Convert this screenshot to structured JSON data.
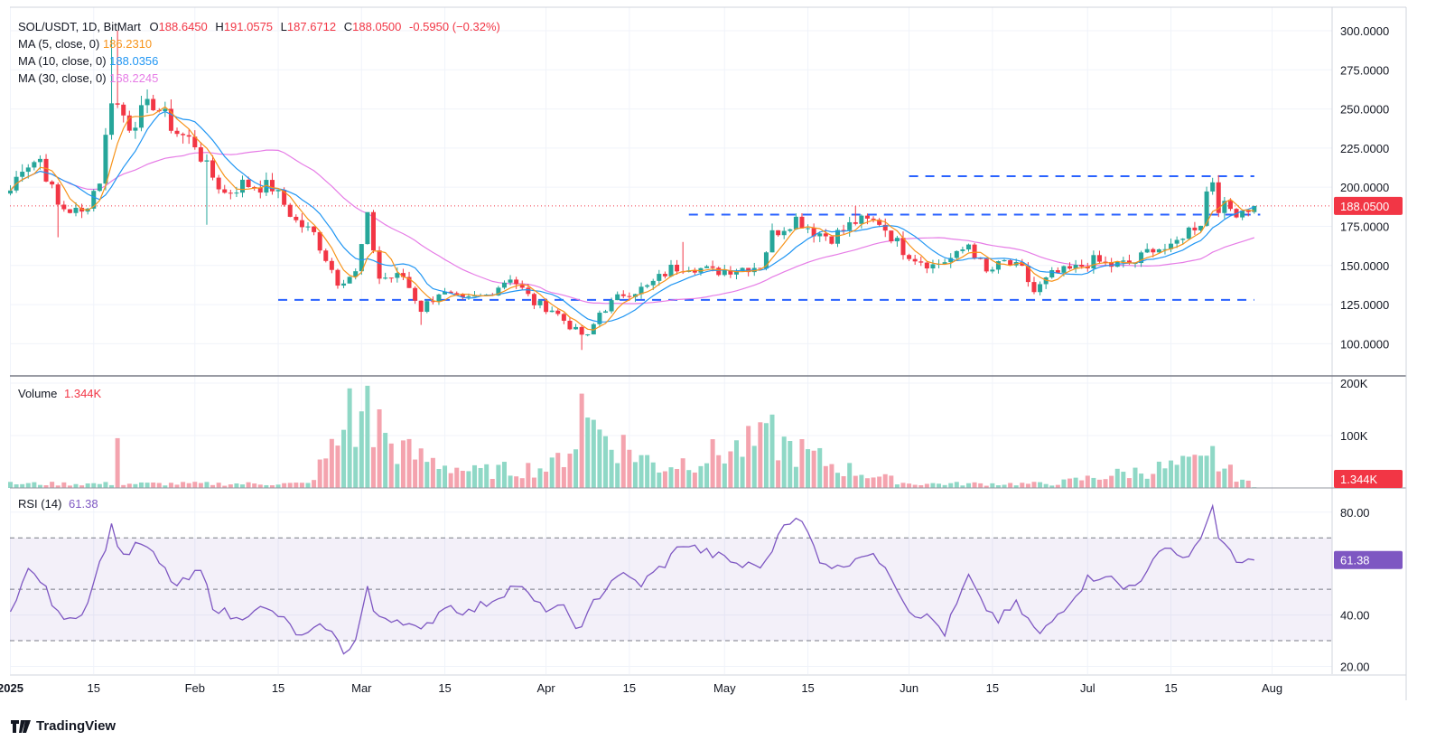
{
  "header": {
    "symbol": "SOL/USDT, 1D, BitMart",
    "o_label": "O",
    "o": "188.6450",
    "h_label": "H",
    "h": "191.0575",
    "l_label": "L",
    "l": "187.6712",
    "c_label": "C",
    "c": "188.0500",
    "change": "-0.5950 (−0.32%)"
  },
  "ma_legend": [
    {
      "label": "MA (5, close, 0)",
      "value": "186.2310",
      "color": "#f7931a"
    },
    {
      "label": "MA (10, close, 0)",
      "value": "188.0356",
      "color": "#2196f3"
    },
    {
      "label": "MA (30, close, 0)",
      "value": "168.2245",
      "color": "#e67ce6"
    }
  ],
  "volume_legend": {
    "label": "Volume",
    "value": "1.344K"
  },
  "rsi_legend": {
    "label": "RSI (14)",
    "value": "61.38"
  },
  "branding": "TradingView",
  "colors": {
    "up": "#26a69a",
    "down": "#f23645",
    "up_vol": "#8fd8c6",
    "down_vol": "#f4a3ae",
    "ma5": "#f7931a",
    "ma10": "#2196f3",
    "ma30": "#e67ce6",
    "rsi": "#7e57c2",
    "level": "#2962ff"
  },
  "chart_data": {
    "type": "candlestick",
    "title": "SOL/USDT, 1D, BitMart",
    "x_axis": {
      "labels": [
        "2025",
        "15",
        "Feb",
        "15",
        "Mar",
        "15",
        "Apr",
        "15",
        "May",
        "15",
        "Jun",
        "15",
        "Jul",
        "15",
        "Aug"
      ],
      "dates": [
        "2025-01-01",
        "2025-01-15",
        "2025-02-01",
        "2025-02-15",
        "2025-03-01",
        "2025-03-15",
        "2025-04-01",
        "2025-04-15",
        "2025-05-01",
        "2025-05-15",
        "2025-06-01",
        "2025-06-15",
        "2025-07-01",
        "2025-07-15",
        "2025-08-01"
      ]
    },
    "price_axis": {
      "ticks": [
        "300.0000",
        "275.0000",
        "250.0000",
        "225.0000",
        "200.0000",
        "175.0000",
        "150.0000",
        "125.0000",
        "100.0000"
      ],
      "range": [
        80,
        315
      ]
    },
    "last_price_label": "188.0500",
    "price_line": 188.05,
    "levels": [
      {
        "price": 207,
        "from": "2025-06-01",
        "to": "2025-07-29"
      },
      {
        "price": 182.5,
        "from": "2025-04-25",
        "to": "2025-07-30"
      },
      {
        "price": 128,
        "from": "2025-02-15",
        "to": "2025-07-29"
      }
    ],
    "price_anchors": [
      [
        "2024-12-31",
        190
      ],
      [
        "2025-01-03",
        214
      ],
      [
        "2025-01-06",
        218
      ],
      [
        "2025-01-09",
        188
      ],
      [
        "2025-01-13",
        183
      ],
      [
        "2025-01-16",
        205
      ],
      [
        "2025-01-18",
        258
      ],
      [
        "2025-01-19",
        252
      ],
      [
        "2025-01-21",
        240
      ],
      [
        "2025-01-25",
        254
      ],
      [
        "2025-01-29",
        235
      ],
      [
        "2025-02-01",
        228
      ],
      [
        "2025-02-03",
        212
      ],
      [
        "2025-02-06",
        196
      ],
      [
        "2025-02-09",
        202
      ],
      [
        "2025-02-14",
        200
      ],
      [
        "2025-02-18",
        178
      ],
      [
        "2025-02-21",
        170
      ],
      [
        "2025-02-25",
        140
      ],
      [
        "2025-02-28",
        145
      ],
      [
        "2025-03-02",
        180
      ],
      [
        "2025-03-04",
        142
      ],
      [
        "2025-03-08",
        143
      ],
      [
        "2025-03-11",
        122
      ],
      [
        "2025-03-14",
        133
      ],
      [
        "2025-03-18",
        127
      ],
      [
        "2025-03-22",
        131
      ],
      [
        "2025-03-26",
        143
      ],
      [
        "2025-03-30",
        126
      ],
      [
        "2025-04-02",
        122
      ],
      [
        "2025-04-06",
        108
      ],
      [
        "2025-04-08",
        104
      ],
      [
        "2025-04-10",
        120
      ],
      [
        "2025-04-14",
        132
      ],
      [
        "2025-04-18",
        136
      ],
      [
        "2025-04-22",
        148
      ],
      [
        "2025-04-25",
        150
      ],
      [
        "2025-04-29",
        146
      ],
      [
        "2025-05-03",
        148
      ],
      [
        "2025-05-07",
        150
      ],
      [
        "2025-05-09",
        170
      ],
      [
        "2025-05-13",
        180
      ],
      [
        "2025-05-16",
        172
      ],
      [
        "2025-05-19",
        168
      ],
      [
        "2025-05-23",
        178
      ],
      [
        "2025-05-27",
        178
      ],
      [
        "2025-05-31",
        160
      ],
      [
        "2025-06-02",
        155
      ],
      [
        "2025-06-05",
        150
      ],
      [
        "2025-06-09",
        156
      ],
      [
        "2025-06-11",
        164
      ],
      [
        "2025-06-14",
        145
      ],
      [
        "2025-06-17",
        152
      ],
      [
        "2025-06-20",
        147
      ],
      [
        "2025-06-22",
        133
      ],
      [
        "2025-06-25",
        144
      ],
      [
        "2025-06-29",
        148
      ],
      [
        "2025-07-02",
        153
      ],
      [
        "2025-07-05",
        150
      ],
      [
        "2025-07-09",
        152
      ],
      [
        "2025-07-12",
        162
      ],
      [
        "2025-07-15",
        160
      ],
      [
        "2025-07-17",
        170
      ],
      [
        "2025-07-20",
        178
      ],
      [
        "2025-07-21",
        197
      ],
      [
        "2025-07-22",
        205
      ],
      [
        "2025-07-23",
        188
      ],
      [
        "2025-07-26",
        185
      ],
      [
        "2025-07-29",
        188.05
      ]
    ],
    "volume_axis": {
      "ticks": [
        "200K",
        "100K"
      ],
      "range": [
        0,
        200000
      ],
      "last_label": "1.344K"
    },
    "volume_peaks": [
      [
        "2025-01-19",
        95000
      ],
      [
        "2025-02-27",
        190000
      ],
      [
        "2025-03-02",
        195000
      ],
      [
        "2025-03-04",
        150000
      ],
      [
        "2025-04-07",
        180000
      ],
      [
        "2025-04-09",
        130000
      ],
      [
        "2025-05-09",
        140000
      ],
      [
        "2025-07-22",
        80000
      ]
    ],
    "rsi_axis": {
      "ticks": [
        "80.00",
        "40.00",
        "20.00"
      ],
      "range": [
        17,
        88
      ],
      "bands": [
        70,
        50,
        30
      ],
      "last_label": "61.38"
    },
    "rsi_anchors": [
      [
        "2025-01-01",
        43
      ],
      [
        "2025-01-04",
        57
      ],
      [
        "2025-01-06",
        54
      ],
      [
        "2025-01-09",
        40
      ],
      [
        "2025-01-13",
        40
      ],
      [
        "2025-01-16",
        60
      ],
      [
        "2025-01-18",
        74
      ],
      [
        "2025-01-20",
        63
      ],
      [
        "2025-01-23",
        68
      ],
      [
        "2025-01-25",
        63
      ],
      [
        "2025-01-29",
        51
      ],
      [
        "2025-02-02",
        57
      ],
      [
        "2025-02-04",
        44
      ],
      [
        "2025-02-08",
        38
      ],
      [
        "2025-02-11",
        43
      ],
      [
        "2025-02-15",
        40
      ],
      [
        "2025-02-19",
        31
      ],
      [
        "2025-02-23",
        36
      ],
      [
        "2025-02-26",
        26
      ],
      [
        "2025-02-28",
        30
      ],
      [
        "2025-03-02",
        51
      ],
      [
        "2025-03-03",
        40
      ],
      [
        "2025-03-08",
        38
      ],
      [
        "2025-03-11",
        33
      ],
      [
        "2025-03-15",
        44
      ],
      [
        "2025-03-19",
        41
      ],
      [
        "2025-03-23",
        46
      ],
      [
        "2025-03-27",
        52
      ],
      [
        "2025-03-31",
        43
      ],
      [
        "2025-04-04",
        42
      ],
      [
        "2025-04-07",
        34
      ],
      [
        "2025-04-09",
        45
      ],
      [
        "2025-04-13",
        56
      ],
      [
        "2025-04-17",
        52
      ],
      [
        "2025-04-21",
        60
      ],
      [
        "2025-04-24",
        68
      ],
      [
        "2025-04-27",
        65
      ],
      [
        "2025-05-01",
        62
      ],
      [
        "2025-05-04",
        59
      ],
      [
        "2025-05-08",
        60
      ],
      [
        "2025-05-11",
        77
      ],
      [
        "2025-05-14",
        76
      ],
      [
        "2025-05-17",
        62
      ],
      [
        "2025-05-20",
        58
      ],
      [
        "2025-05-24",
        64
      ],
      [
        "2025-05-28",
        60
      ],
      [
        "2025-06-01",
        42
      ],
      [
        "2025-06-05",
        38
      ],
      [
        "2025-06-07",
        33
      ],
      [
        "2025-06-11",
        55
      ],
      [
        "2025-06-13",
        45
      ],
      [
        "2025-06-16",
        38
      ],
      [
        "2025-06-19",
        44
      ],
      [
        "2025-06-23",
        32
      ],
      [
        "2025-06-27",
        43
      ],
      [
        "2025-07-01",
        54
      ],
      [
        "2025-07-04",
        56
      ],
      [
        "2025-07-07",
        50
      ],
      [
        "2025-07-11",
        56
      ],
      [
        "2025-07-14",
        68
      ],
      [
        "2025-07-17",
        62
      ],
      [
        "2025-07-20",
        68
      ],
      [
        "2025-07-22",
        84
      ],
      [
        "2025-07-23",
        70
      ],
      [
        "2025-07-26",
        60
      ],
      [
        "2025-07-29",
        61.38
      ]
    ]
  }
}
